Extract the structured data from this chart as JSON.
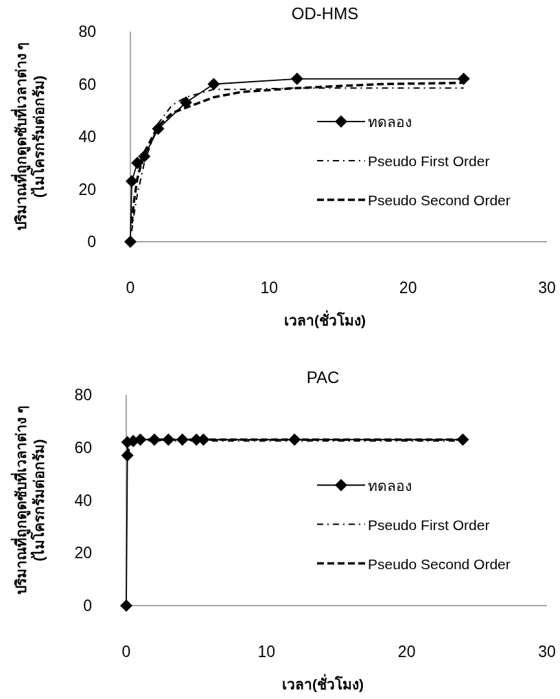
{
  "chart_data": [
    {
      "type": "line",
      "title": "OD-HMS",
      "xlabel": "เวลา(ชั่วโมง)",
      "ylabel": "ปริมาณที่ถูกดูดซับที่เวลาต่าง ๆ\n(ไมโครกรัมต่อกรัม)",
      "xlim": [
        0,
        30
      ],
      "ylim": [
        0,
        80
      ],
      "xticks": [
        0,
        10,
        20,
        30
      ],
      "yticks": [
        0,
        20,
        40,
        60,
        80
      ],
      "legend": "right",
      "grid": false,
      "series": [
        {
          "name": "ทดลอง",
          "color": "#000000",
          "marker": "diamond",
          "line_style": "solid",
          "x": [
            0,
            0.1,
            0.5,
            1,
            2,
            4,
            6,
            12,
            24
          ],
          "values": [
            0,
            23,
            30,
            32.5,
            43,
            53,
            60,
            62,
            62
          ]
        },
        {
          "name": "Pseudo First Order",
          "color": "#000000",
          "marker": "none",
          "line_style": "dashdot",
          "x": [
            0.1,
            0.25,
            0.5,
            1,
            2,
            3,
            4,
            6,
            8,
            12,
            18,
            24
          ],
          "values": [
            4,
            10,
            18,
            30,
            45,
            52,
            55,
            58,
            58,
            58.5,
            58.5,
            58.5
          ]
        },
        {
          "name": "Pseudo Second Order",
          "color": "#000000",
          "marker": "none",
          "line_style": "dashed",
          "x": [
            0.1,
            0.25,
            0.5,
            1,
            2,
            3,
            4,
            6,
            8,
            12,
            18,
            24
          ],
          "values": [
            7,
            15,
            24,
            34,
            44,
            49,
            51,
            55,
            57,
            58.5,
            60,
            60.5
          ]
        }
      ]
    },
    {
      "type": "line",
      "title": "PAC",
      "xlabel": "เวลา(ชั่วโมง)",
      "ylabel": "ปริมาณที่ถูกดูดซับที่เวลาต่าง ๆ\n(ไมโครกรัมต่อกรัม)",
      "xlim": [
        0,
        30
      ],
      "ylim": [
        0,
        80
      ],
      "xticks": [
        0,
        10,
        20,
        30
      ],
      "yticks": [
        0,
        20,
        40,
        60,
        80
      ],
      "legend": "right",
      "grid": false,
      "series": [
        {
          "name": "ทดลอง",
          "color": "#000000",
          "marker": "diamond",
          "line_style": "solid",
          "x": [
            0,
            0.08,
            0.08,
            0.5,
            1,
            2,
            3,
            4,
            5,
            5.5,
            12,
            24
          ],
          "values": [
            0,
            57,
            62,
            62.5,
            63,
            63,
            63,
            63,
            63,
            63,
            63,
            63
          ]
        },
        {
          "name": "Pseudo First Order",
          "color": "#000000",
          "marker": "none",
          "line_style": "dashdot",
          "x": [
            0.08,
            0.25,
            0.5,
            1,
            2,
            4,
            6,
            12,
            24
          ],
          "values": [
            57,
            61,
            62.5,
            62.5,
            62.5,
            62.5,
            62.5,
            62.5,
            62.5
          ]
        },
        {
          "name": "Pseudo Second Order",
          "color": "#000000",
          "marker": "none",
          "line_style": "dashed",
          "x": [
            0.08,
            0.25,
            0.5,
            1,
            2,
            4,
            6,
            12,
            24
          ],
          "values": [
            57,
            61.5,
            62.5,
            63,
            63,
            63,
            63,
            63,
            63
          ]
        }
      ]
    }
  ]
}
